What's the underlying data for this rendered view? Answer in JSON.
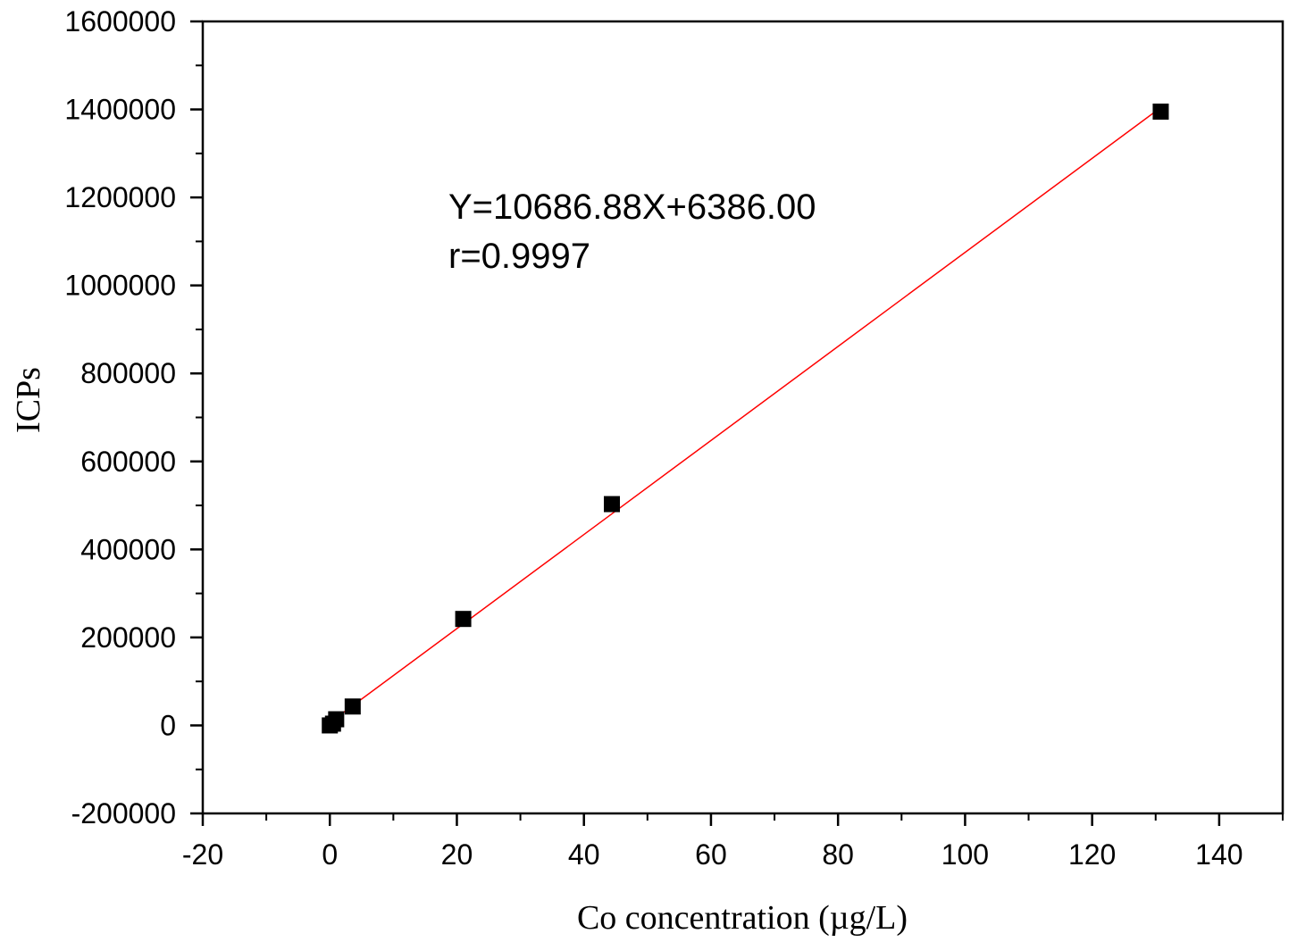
{
  "chart_data": {
    "type": "scatter",
    "xlabel": "Co concentration (µg/L)",
    "ylabel": "ICPs",
    "xlim": [
      -20,
      150
    ],
    "ylim": [
      -200000,
      1600000
    ],
    "x_ticks": [
      -20,
      0,
      20,
      40,
      60,
      80,
      100,
      120,
      140
    ],
    "y_ticks": [
      -200000,
      0,
      200000,
      400000,
      600000,
      800000,
      1000000,
      1200000,
      1400000,
      1600000
    ],
    "x_tick_labels": [
      "-20",
      "0",
      "20",
      "40",
      "60",
      "80",
      "100",
      "120",
      "140"
    ],
    "y_tick_labels": [
      "-200000",
      "0",
      "200000",
      "400000",
      "600000",
      "800000",
      "1000000",
      "1200000",
      "1400000",
      "1600000"
    ],
    "grid": false,
    "series": [
      {
        "marker": "square",
        "color": "#000000",
        "x": [
          0,
          0.5,
          1,
          3.6,
          21,
          44.4,
          130.8
        ],
        "y": [
          0,
          4000,
          14000,
          43000,
          242000,
          503000,
          1395000
        ]
      }
    ],
    "fit_line": {
      "color": "#ff0000",
      "slope": 10686.88,
      "intercept": 6386.0,
      "x_range": [
        0,
        130.8
      ]
    },
    "annotations": {
      "equation": "Y=10686.88X+6386.00",
      "r_value": "r=0.9997"
    }
  }
}
